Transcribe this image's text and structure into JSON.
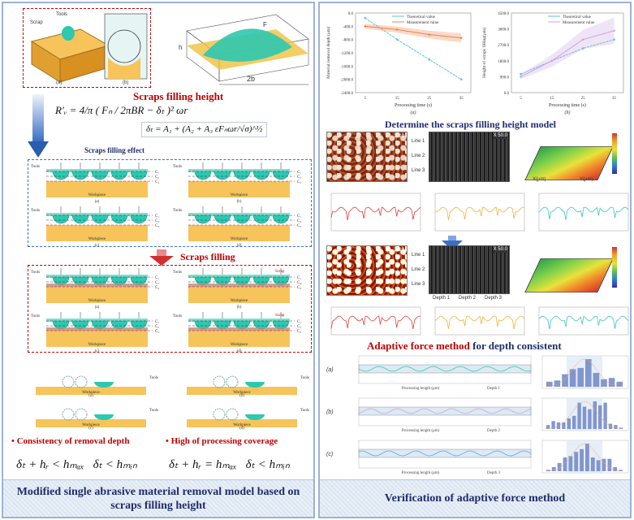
{
  "left": {
    "top_figure": {
      "tools_label": "Tools",
      "scrap_label": "Scrap",
      "width_label": "2b",
      "force_label": "F",
      "height_label": "h",
      "captions": [
        "(a)",
        "(b)"
      ]
    },
    "scraps_filling_height_title": "Scraps filling height",
    "formula_main": "R′ᵥ = 4/π ( Fₙ / 2πBR − δₜ )² ωr",
    "formula_delta": "δₜ = A₁ + (A₂ + A₃ εFₙωr/√σ)^½",
    "scraps_filling_effect": "Scraps filling effect",
    "diagram_labels": {
      "tools": "Tools",
      "workpiece": "Workpiece",
      "scrap": "Scrap",
      "layers": [
        "C₁",
        "C₂",
        "C₃"
      ],
      "captions": [
        "(a)",
        "(b)",
        "(c)",
        "(d)"
      ]
    },
    "scraps_filling_title": "Scraps filling",
    "bullets": [
      "Consistency of removal depth",
      "High of processing coverage"
    ],
    "conditions": [
      "δₜ + hᵣ < hₘₐₓ   δₜ < hₘᵢₙ",
      "δₜ + hᵣ = hₘₐₓ   δₜ < hₘᵢₙ"
    ],
    "footer": "Modified single abrasive material removal model based on scraps filling height"
  },
  "right": {
    "chart_data": [
      {
        "type": "line",
        "caption": "(a)",
        "xlabel": "Processing time (s)",
        "ylabel": "Material removal depth (μm)",
        "ylim": [
          -2400,
          0
        ],
        "yticks": [
          "0.0",
          "-400.0",
          "-800.0",
          "-1200.0",
          "-1600.0",
          "-2000.0",
          "-2400.0"
        ],
        "yticks_values": [
          0,
          -400,
          -800,
          -1200,
          -1600,
          -2000,
          -2400
        ],
        "xticks": [
          "5",
          "15",
          "25",
          "35"
        ],
        "x": [
          5,
          15,
          25,
          35
        ],
        "legend": "top",
        "series": [
          {
            "name": "Theoretical value",
            "values": [
              -150,
              -800,
              -1400,
              -2000
            ],
            "color": "#5bc0de"
          },
          {
            "name": "Measurement value",
            "values": [
              -400,
              -500,
              -650,
              -750
            ],
            "color": "#f0804a"
          }
        ]
      },
      {
        "type": "line",
        "caption": "(b)",
        "xlabel": "Processing time (s)",
        "ylabel": "Height of scraps filling(μm)",
        "ylim": [
          0,
          4500
        ],
        "yticks": [
          "0.0",
          "900.0",
          "1800.0",
          "2700.0",
          "3600.0",
          "4500.0"
        ],
        "yticks_values": [
          0,
          900,
          1800,
          2700,
          3600,
          4500
        ],
        "xticks": [
          "5",
          "15",
          "25",
          "35"
        ],
        "x": [
          5,
          15,
          25,
          35
        ],
        "legend": "top",
        "series": [
          {
            "name": "Theoretical value",
            "values": [
              1050,
              1800,
              2500,
              3000
            ],
            "color": "#5bc0de"
          },
          {
            "name": "Measurement value",
            "values": [
              900,
              1800,
              3000,
              3500
            ],
            "color": "#c9a6e0"
          }
        ]
      }
    ],
    "model_title": "Determine the scraps filling height model",
    "micro": {
      "mag1": "X 10",
      "mag2": "X 50.0",
      "lines": [
        "Line 1",
        "Line 2",
        "Line 3"
      ],
      "depths": [
        "Depth 1",
        "Depth 2",
        "Depth 3"
      ],
      "x_axis": "X(μm)",
      "y_axis": "Y(μm)",
      "profile_colors": [
        "#e0403a",
        "#f0b040",
        "#40c0c8"
      ]
    },
    "adaptive_title_red": "Adaptive force method",
    "adaptive_title_blue": " for depth consistent",
    "adaptive_rows": [
      {
        "label": "(a)",
        "depth": "Depth 1",
        "xlabel": "Processing length (μm)",
        "color": "#3cc8b4",
        "hist": [
          2,
          2.5,
          5,
          7,
          7.5,
          11,
          5.5,
          3,
          3.5,
          2
        ]
      },
      {
        "label": "(b)",
        "depth": "Depth 2",
        "xlabel": "Processing length (μm)",
        "color": "#c9a6e0",
        "hist": [
          1.5,
          3,
          2.5,
          2.5,
          4,
          5,
          10,
          8.5,
          7.5,
          10.5,
          9,
          10,
          2,
          1.5,
          0.5
        ]
      },
      {
        "label": "(c)",
        "depth": "Depth 3",
        "xlabel": "Processing length (μm)",
        "color": "#5aa8e6",
        "hist": [
          0.5,
          1.5,
          3,
          5,
          5.5,
          7,
          8,
          10,
          5,
          4,
          4.5,
          4.5,
          1.5,
          0.5
        ]
      }
    ],
    "footer": "Verification of adaptive force method"
  }
}
